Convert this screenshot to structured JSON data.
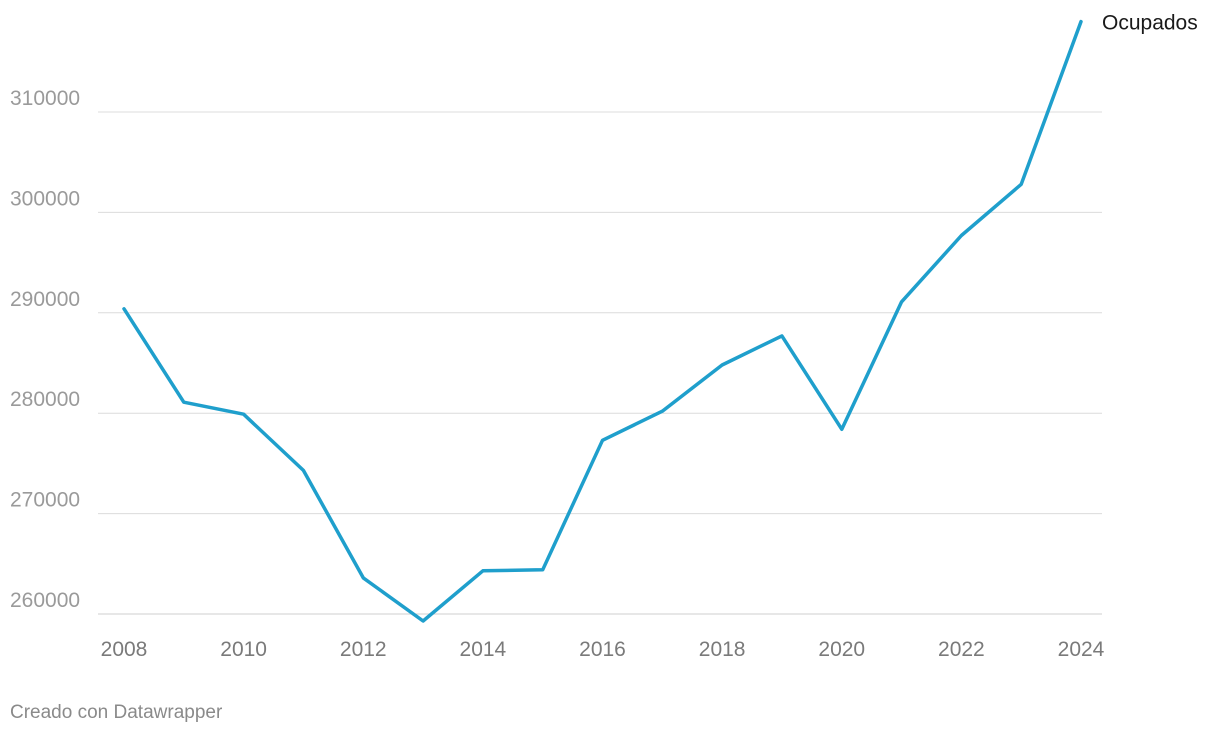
{
  "chart_data": {
    "type": "line",
    "x": [
      2008,
      2009,
      2010,
      2011,
      2012,
      2013,
      2014,
      2015,
      2016,
      2017,
      2018,
      2019,
      2020,
      2021,
      2022,
      2023,
      2024
    ],
    "series": [
      {
        "name": "Ocupados",
        "color": "#1f9fcc",
        "values": [
          290400,
          281100,
          279900,
          274300,
          263600,
          259300,
          264300,
          264400,
          277300,
          280200,
          284800,
          287700,
          278400,
          291100,
          297700,
          302800,
          319000
        ]
      }
    ],
    "y_ticks": [
      260000,
      270000,
      280000,
      290000,
      300000,
      310000
    ],
    "x_ticks": [
      2008,
      2010,
      2012,
      2014,
      2016,
      2018,
      2020,
      2022,
      2024
    ],
    "xlim": [
      2008,
      2024
    ],
    "ylim": [
      260000,
      320000
    ],
    "grid": true,
    "legend": "direct-label-at-line-end"
  },
  "footer": {
    "credit": "Creado con Datawrapper"
  }
}
